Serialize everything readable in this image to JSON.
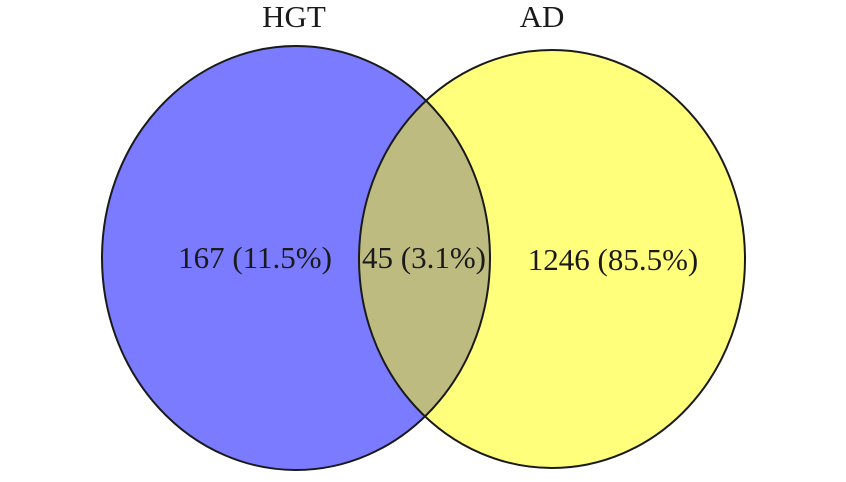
{
  "sets": [
    {
      "name": "HGT",
      "color": "#7b7bff"
    },
    {
      "name": "AD",
      "color": "#ffff7b"
    }
  ],
  "overlap_color": "#bdbb80",
  "outline_color": "#1a1a1a",
  "regions": {
    "hgt_only": {
      "count": 167,
      "label": "167 (11.5%)"
    },
    "both": {
      "count": 45,
      "label": "45 (3.1%)"
    },
    "ad_only": {
      "count": 1246,
      "label": "1246 (85.5%)"
    }
  }
}
